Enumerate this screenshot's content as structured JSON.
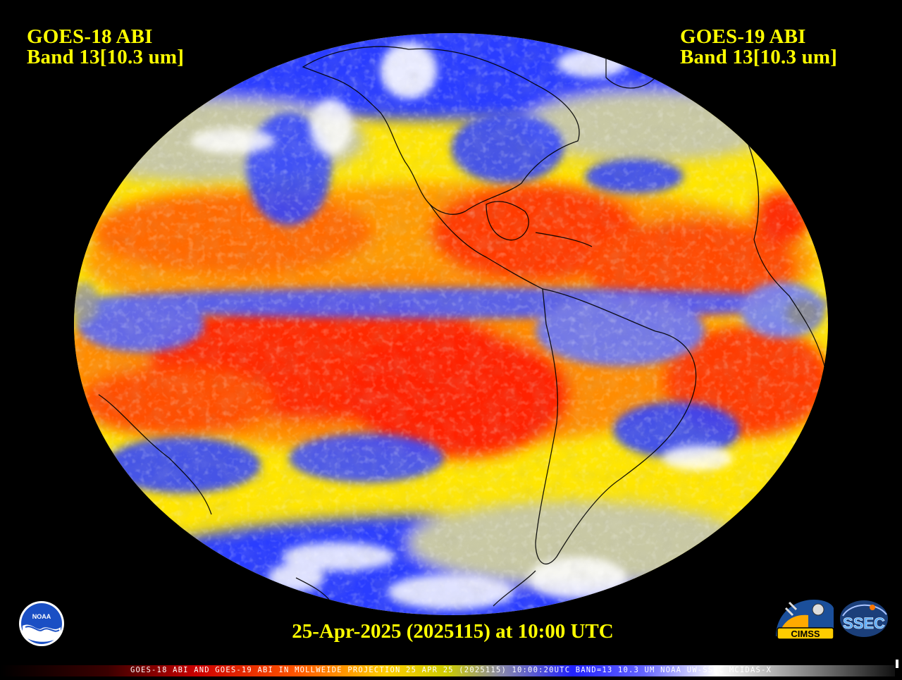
{
  "header": {
    "left": {
      "satellite": "GOES-18 ABI",
      "band": "Band 13[10.3 um]"
    },
    "right": {
      "satellite": "GOES-19 ABI",
      "band": "Band 13[10.3 um]"
    }
  },
  "timestamp": "25-Apr-2025 (2025115) at 10:00 UTC",
  "footer_caption": "GOES-18 ABI AND GOES-19 ABI IN MOLLWEIDE PROJECTION 25 APR 25 (2025115) 10:00:20UTC BAND=13 10.3 UM NOAA UW-SSEC MCIDAS-X",
  "logos": {
    "noaa": "NOAA",
    "cimss": "CIMSS",
    "ssec": "SSEC"
  },
  "map": {
    "projection": "mollweide",
    "imagery": "infrared brightness temperature",
    "colors": {
      "background": "#000000",
      "warm_red": "#ff2200",
      "orange": "#ff8800",
      "yellow": "#ffff00",
      "gray": "#b8b8a0",
      "blue": "#2233ff",
      "white": "#ffffff",
      "outline": "#000000",
      "label": "#ffff00"
    },
    "colorbar_stops": [
      "#000000",
      "#8b0000",
      "#ff0000",
      "#ff8800",
      "#ffff00",
      "#888800",
      "#0000ff",
      "#ffffff"
    ]
  }
}
